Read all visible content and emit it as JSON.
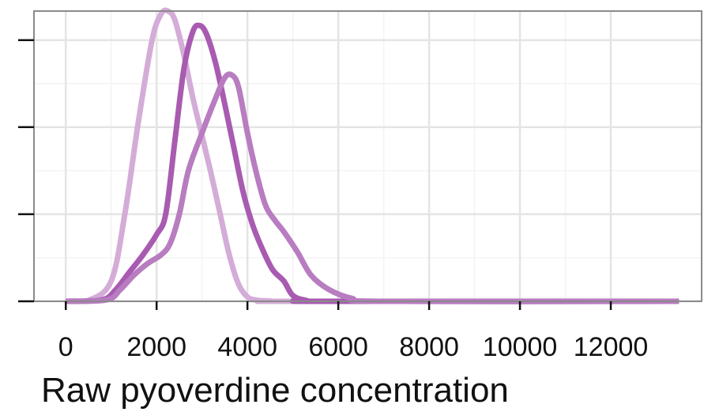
{
  "chart_data": {
    "type": "line",
    "title": "",
    "xlabel": "Raw pyoverdine concentration",
    "ylabel": "",
    "xlim": [
      -700,
      14000
    ],
    "ylim": [
      0,
      1.0
    ],
    "xticks": [
      0,
      2000,
      4000,
      6000,
      8000,
      10000,
      12000
    ],
    "xtick_labels": [
      "0",
      "2000",
      "4000",
      "6000",
      "8000",
      "10000",
      "12000"
    ],
    "yticks": [
      0,
      0.3,
      0.6,
      0.9
    ],
    "ytick_labels": [
      "",
      "",
      "",
      ""
    ],
    "grid": true,
    "series": [
      {
        "color": "#d4acd8",
        "x": [
          0,
          500,
          1000,
          1300,
          1600,
          1900,
          2100,
          2250,
          2400,
          2600,
          2800,
          3000,
          3200,
          3400,
          3600,
          3800,
          4000,
          4200,
          4500,
          5000,
          13500
        ],
        "y": [
          0,
          0.003,
          0.07,
          0.3,
          0.62,
          0.9,
          0.99,
          1.0,
          0.97,
          0.85,
          0.7,
          0.57,
          0.44,
          0.3,
          0.16,
          0.06,
          0.015,
          0.004,
          0.001,
          0,
          0
        ]
      },
      {
        "color": "#a85bb0",
        "x": [
          0,
          800,
          1100,
          1400,
          1700,
          2000,
          2200,
          2400,
          2600,
          2800,
          2950,
          3100,
          3300,
          3500,
          3700,
          3900,
          4100,
          4300,
          4550,
          4800,
          5000,
          5300,
          5700,
          13500
        ],
        "y": [
          0,
          0.005,
          0.04,
          0.1,
          0.16,
          0.23,
          0.3,
          0.55,
          0.8,
          0.93,
          0.95,
          0.92,
          0.82,
          0.68,
          0.53,
          0.38,
          0.27,
          0.19,
          0.11,
          0.07,
          0.02,
          0.003,
          0,
          0
        ]
      },
      {
        "color": "#b87cc0",
        "x": [
          0,
          900,
          1200,
          1500,
          1800,
          2100,
          2300,
          2500,
          2700,
          3000,
          3300,
          3500,
          3650,
          3800,
          4000,
          4200,
          4400,
          4600,
          4800,
          5100,
          5400,
          5800,
          6300,
          7000,
          13500
        ],
        "y": [
          0,
          0.005,
          0.04,
          0.09,
          0.13,
          0.16,
          0.2,
          0.3,
          0.45,
          0.58,
          0.7,
          0.77,
          0.78,
          0.74,
          0.58,
          0.44,
          0.33,
          0.28,
          0.24,
          0.17,
          0.09,
          0.04,
          0.01,
          0,
          0
        ]
      }
    ]
  }
}
